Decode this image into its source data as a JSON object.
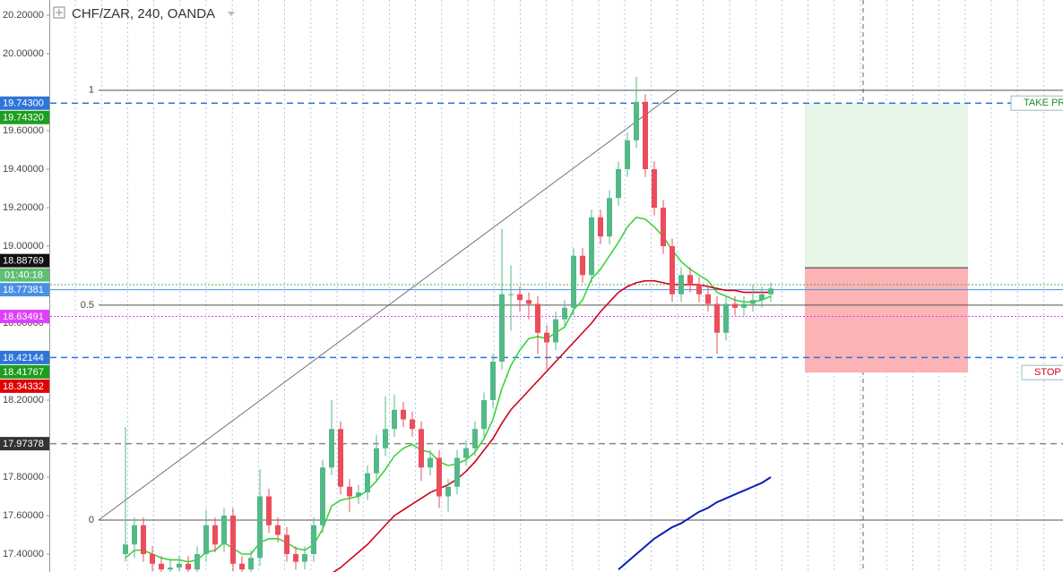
{
  "chart_data": {
    "type": "candlestick",
    "title": "CHF/ZAR, 240, OANDA",
    "ylim": [
      17.307,
      20.279
    ],
    "yticks": [
      {
        "value": 17.4,
        "label": "17.40000"
      },
      {
        "value": 17.6,
        "label": "17.60000"
      },
      {
        "value": 17.8,
        "label": "17.80000"
      },
      {
        "value": 18.2,
        "label": "18.20000"
      },
      {
        "value": 18.6,
        "label": "18.60000"
      },
      {
        "value": 19.0,
        "label": "19.00000"
      },
      {
        "value": 19.2,
        "label": "19.20000"
      },
      {
        "value": 19.4,
        "label": "19.40000"
      },
      {
        "value": 19.6,
        "label": "19.60000"
      },
      {
        "value": 20.0,
        "label": "20.00000"
      },
      {
        "value": 20.2,
        "label": "20.20000"
      }
    ],
    "up_color": "#53b987",
    "down_color": "#eb4d5c",
    "candles": [
      [
        17.4,
        18.06,
        17.36,
        17.45
      ],
      [
        17.45,
        17.59,
        17.38,
        17.55
      ],
      [
        17.55,
        17.59,
        17.36,
        17.4
      ],
      [
        17.4,
        17.44,
        17.31,
        17.35
      ],
      [
        17.35,
        17.39,
        17.28,
        17.32
      ],
      [
        17.32,
        17.37,
        17.29,
        17.33
      ],
      [
        17.33,
        17.39,
        17.31,
        17.35
      ],
      [
        17.35,
        17.39,
        17.28,
        17.32
      ],
      [
        17.32,
        17.44,
        17.28,
        17.4
      ],
      [
        17.4,
        17.63,
        17.36,
        17.55
      ],
      [
        17.55,
        17.59,
        17.41,
        17.45
      ],
      [
        17.45,
        17.64,
        17.41,
        17.6
      ],
      [
        17.6,
        17.64,
        17.31,
        17.35
      ],
      [
        17.35,
        17.39,
        17.28,
        17.32
      ],
      [
        17.32,
        17.42,
        17.28,
        17.38
      ],
      [
        17.38,
        17.84,
        17.34,
        17.7
      ],
      [
        17.7,
        17.74,
        17.51,
        17.55
      ],
      [
        17.55,
        17.59,
        17.46,
        17.5
      ],
      [
        17.5,
        17.54,
        17.36,
        17.4
      ],
      [
        17.4,
        17.44,
        17.32,
        17.36
      ],
      [
        17.36,
        17.44,
        17.32,
        17.4
      ],
      [
        17.4,
        17.59,
        17.36,
        17.55
      ],
      [
        17.55,
        17.89,
        17.51,
        17.85
      ],
      [
        17.85,
        18.2,
        17.81,
        18.05
      ],
      [
        18.05,
        18.09,
        17.71,
        17.75
      ],
      [
        17.75,
        17.79,
        17.62,
        17.7
      ],
      [
        17.7,
        17.76,
        17.66,
        17.72
      ],
      [
        17.72,
        17.86,
        17.68,
        17.82
      ],
      [
        17.82,
        18.02,
        17.78,
        17.95
      ],
      [
        17.95,
        18.22,
        17.91,
        18.05
      ],
      [
        18.05,
        18.23,
        18.01,
        18.15
      ],
      [
        18.15,
        18.19,
        18.06,
        18.1
      ],
      [
        18.1,
        18.14,
        18.01,
        18.05
      ],
      [
        18.05,
        18.09,
        17.78,
        17.85
      ],
      [
        17.85,
        17.94,
        17.81,
        17.9
      ],
      [
        17.9,
        17.94,
        17.64,
        17.7
      ],
      [
        17.7,
        17.79,
        17.62,
        17.75
      ],
      [
        17.75,
        17.94,
        17.71,
        17.9
      ],
      [
        17.9,
        17.99,
        17.86,
        17.95
      ],
      [
        17.95,
        18.09,
        17.91,
        18.05
      ],
      [
        18.05,
        18.24,
        18.01,
        18.2
      ],
      [
        18.2,
        18.44,
        18.16,
        18.4
      ],
      [
        18.4,
        19.09,
        18.36,
        18.75
      ],
      [
        18.75,
        18.9,
        18.56,
        18.75
      ],
      [
        18.75,
        18.79,
        18.66,
        18.72
      ],
      [
        18.72,
        18.76,
        18.62,
        18.7
      ],
      [
        18.7,
        18.74,
        18.44,
        18.55
      ],
      [
        18.55,
        18.59,
        18.36,
        18.5
      ],
      [
        18.5,
        18.66,
        18.46,
        18.62
      ],
      [
        18.62,
        18.72,
        18.58,
        18.68
      ],
      [
        18.68,
        18.99,
        18.64,
        18.95
      ],
      [
        18.95,
        18.99,
        18.81,
        18.85
      ],
      [
        18.85,
        19.19,
        18.81,
        19.15
      ],
      [
        19.15,
        19.19,
        19.01,
        19.05
      ],
      [
        19.05,
        19.29,
        19.01,
        19.25
      ],
      [
        19.25,
        19.44,
        19.21,
        19.4
      ],
      [
        19.4,
        19.59,
        19.36,
        19.55
      ],
      [
        19.55,
        19.88,
        19.51,
        19.75
      ],
      [
        19.75,
        19.79,
        19.36,
        19.4
      ],
      [
        19.4,
        19.44,
        19.16,
        19.2
      ],
      [
        19.2,
        19.24,
        18.96,
        19.0
      ],
      [
        19.0,
        19.04,
        18.71,
        18.75
      ],
      [
        18.75,
        18.89,
        18.71,
        18.85
      ],
      [
        18.85,
        18.89,
        18.76,
        18.8
      ],
      [
        18.8,
        18.84,
        18.71,
        18.75
      ],
      [
        18.75,
        18.79,
        18.66,
        18.7
      ],
      [
        18.7,
        18.74,
        18.44,
        18.55
      ],
      [
        18.55,
        18.74,
        18.51,
        18.7
      ],
      [
        18.7,
        18.74,
        18.64,
        18.68
      ],
      [
        18.68,
        18.74,
        18.64,
        18.7
      ],
      [
        18.7,
        18.8,
        18.66,
        18.72
      ],
      [
        18.72,
        18.79,
        18.68,
        18.75
      ],
      [
        18.75,
        18.81,
        18.71,
        18.78
      ]
    ],
    "series": [
      {
        "color": "#3ad43a",
        "values": [
          17.38,
          17.42,
          17.42,
          17.4,
          17.38,
          17.37,
          17.37,
          17.36,
          17.37,
          17.41,
          17.42,
          17.46,
          17.43,
          17.4,
          17.4,
          17.46,
          17.48,
          17.48,
          17.46,
          17.43,
          17.42,
          17.45,
          17.53,
          17.65,
          17.68,
          17.69,
          17.7,
          17.73,
          17.78,
          17.84,
          17.91,
          17.95,
          17.97,
          17.94,
          17.93,
          17.88,
          17.86,
          17.87,
          17.89,
          17.93,
          18.0,
          18.1,
          18.26,
          18.38,
          18.46,
          18.52,
          18.53,
          18.52,
          18.55,
          18.58,
          18.67,
          18.72,
          18.83,
          18.88,
          18.95,
          19.02,
          19.1,
          19.15,
          19.14,
          19.1,
          19.05,
          18.98,
          18.92,
          18.88,
          18.85,
          18.82,
          18.76,
          18.74,
          18.72,
          18.71,
          18.71,
          18.72,
          18.74
        ]
      },
      {
        "color": "#d0021b",
        "values": [
          null,
          null,
          null,
          null,
          null,
          null,
          null,
          null,
          null,
          null,
          null,
          null,
          null,
          null,
          null,
          null,
          null,
          null,
          null,
          null,
          null,
          null,
          null,
          17.3,
          17.33,
          17.37,
          17.41,
          17.45,
          17.5,
          17.55,
          17.6,
          17.63,
          17.66,
          17.69,
          17.72,
          17.74,
          17.76,
          17.79,
          17.83,
          17.88,
          17.94,
          18.0,
          18.08,
          18.15,
          18.2,
          18.25,
          18.3,
          18.35,
          18.4,
          18.45,
          18.5,
          18.55,
          18.6,
          18.66,
          18.71,
          18.76,
          18.79,
          18.81,
          18.82,
          18.82,
          18.81,
          18.8,
          18.8,
          18.8,
          18.8,
          18.79,
          18.78,
          18.77,
          18.77,
          18.76,
          18.76,
          18.76,
          18.76
        ]
      },
      {
        "color": "#0a1fb5",
        "values": [
          null,
          null,
          null,
          null,
          null,
          null,
          null,
          null,
          null,
          null,
          null,
          null,
          null,
          null,
          null,
          null,
          null,
          null,
          null,
          null,
          null,
          null,
          null,
          null,
          null,
          null,
          null,
          null,
          null,
          null,
          null,
          null,
          null,
          null,
          null,
          null,
          null,
          null,
          null,
          null,
          null,
          null,
          null,
          null,
          null,
          null,
          null,
          null,
          null,
          null,
          null,
          null,
          null,
          null,
          null,
          17.32,
          17.36,
          17.4,
          17.44,
          17.48,
          17.51,
          17.54,
          17.56,
          17.59,
          17.62,
          17.64,
          17.67,
          17.69,
          17.71,
          17.73,
          17.75,
          17.77,
          17.8
        ]
      }
    ],
    "levels": [
      {
        "value": 19.7432,
        "color": "#2f74d9",
        "style": "dashed"
      },
      {
        "value": 18.42144,
        "color": "#2f74d9",
        "style": "dashed"
      },
      {
        "value": 18.77381,
        "color": "#4a90e2",
        "style": "solid"
      },
      {
        "value": 18.8,
        "color": "#4caf50",
        "style": "dotted"
      },
      {
        "value": 18.63491,
        "color": "#e040fb",
        "style": "dotted"
      },
      {
        "value": 17.97378,
        "color": "#888888",
        "style": "dashed"
      }
    ],
    "fib_levels": [
      {
        "label": "1",
        "value": 19.81
      },
      {
        "label": "0.5",
        "value": 18.6935
      },
      {
        "label": "0",
        "value": 17.577
      }
    ],
    "price_labels": [
      {
        "value": 19.743,
        "label": "19.74300",
        "color": "#2f74d9"
      },
      {
        "value": 19.7432,
        "label": "19.74320",
        "color": "#1e9e1e"
      },
      {
        "value": 18.88769,
        "label": "18.88769",
        "color": "#111111"
      },
      {
        "value": 18.77381,
        "label": "18.77381",
        "color": "#4a90e2"
      },
      {
        "value": 18.63491,
        "label": "18.63491",
        "color": "#e040fb"
      },
      {
        "value": 18.42144,
        "label": "18.42144",
        "color": "#2f74d9"
      },
      {
        "value": 18.41767,
        "label": "18.41767",
        "color": "#1e9e1e"
      },
      {
        "value": 18.34332,
        "label": "18.34332",
        "color": "#e00000"
      },
      {
        "value": 17.97378,
        "label": "17.97378",
        "color": "#333333"
      }
    ],
    "countdown": "01:40:18",
    "position": {
      "entry": 18.88769,
      "target": 19.7432,
      "stop": 18.34332,
      "target_label": "TAKE PROFIT",
      "stop_label": "STOP LOSS"
    }
  }
}
